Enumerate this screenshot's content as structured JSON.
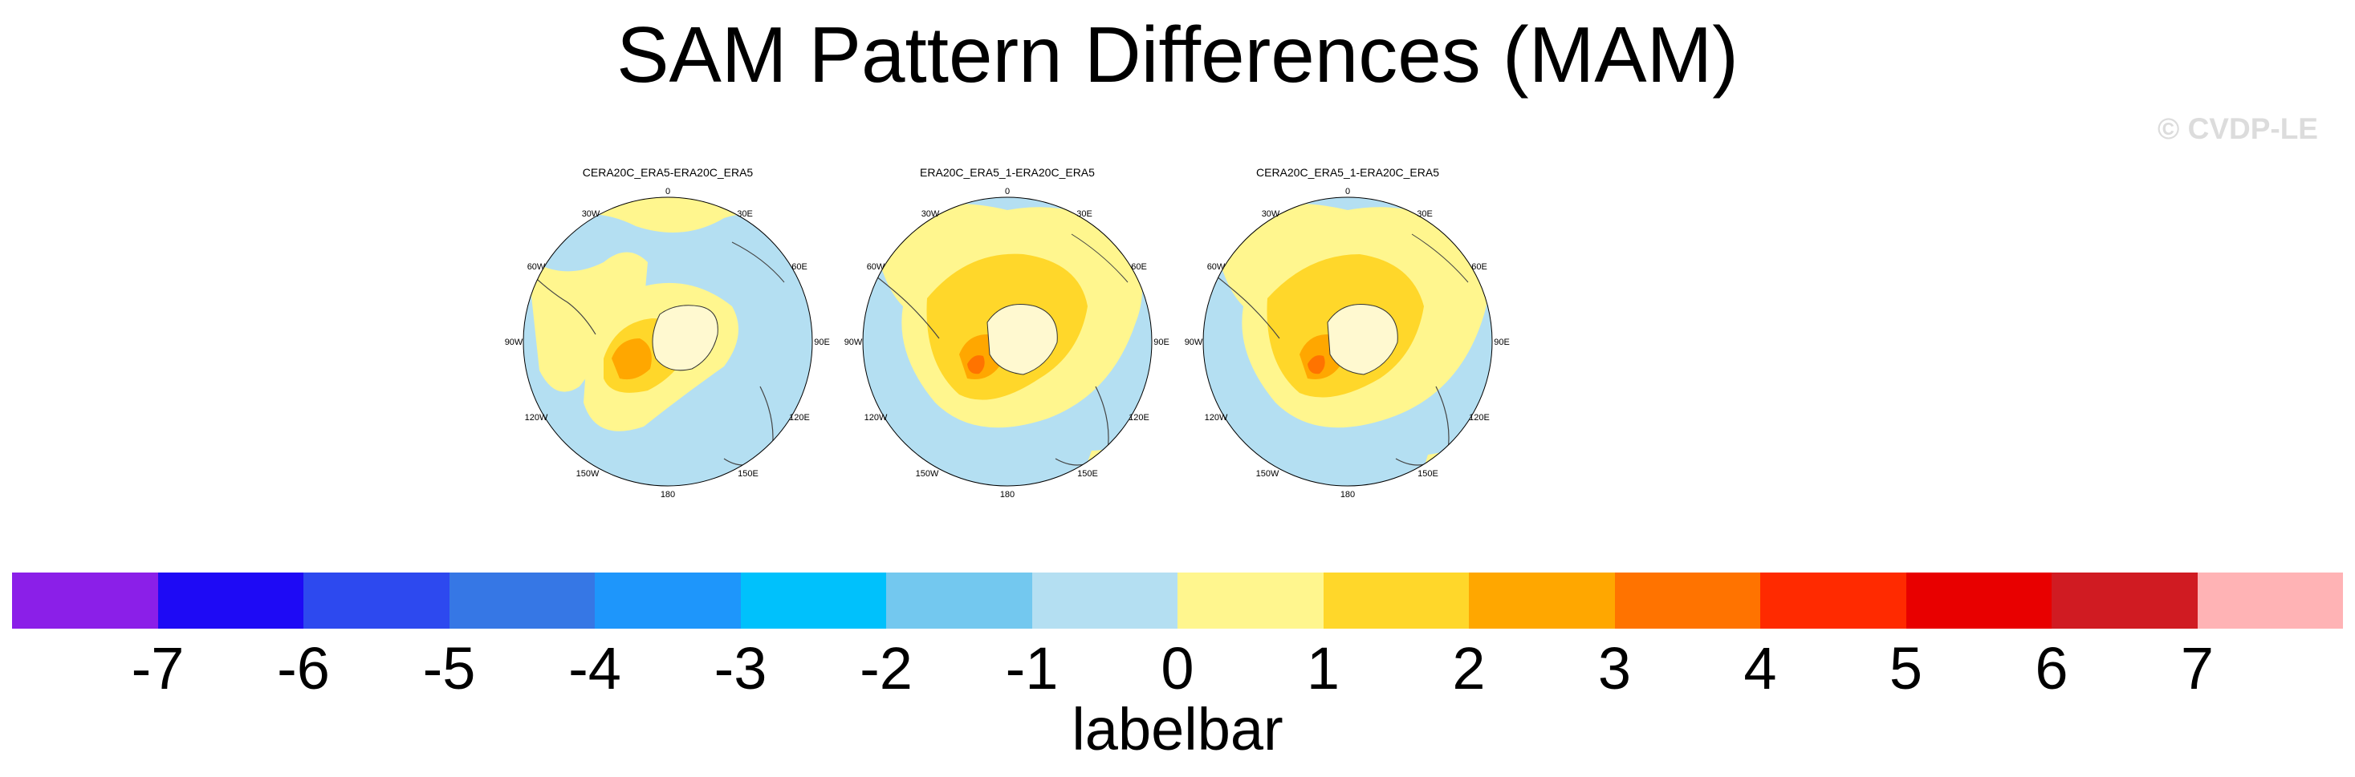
{
  "title": "SAM Pattern Differences (MAM)",
  "watermark": "© CVDP-LE",
  "panels": [
    {
      "title": "CERA20C_ERA5-ERA20C_ERA5"
    },
    {
      "title": "ERA20C_ERA5_1-ERA20C_ERA5"
    },
    {
      "title": "CERA20C_ERA5_1-ERA20C_ERA5"
    }
  ],
  "longitude_labels": [
    "0",
    "30E",
    "60E",
    "90E",
    "120E",
    "150E",
    "180",
    "150W",
    "120W",
    "90W",
    "60W",
    "30W"
  ],
  "labelbar": {
    "label": "labelbar",
    "ticks": [
      "-7",
      "-6",
      "-5",
      "-4",
      "-3",
      "-2",
      "-1",
      "0",
      "1",
      "2",
      "3",
      "4",
      "5",
      "6",
      "7"
    ],
    "colors": [
      "#8b1fe8",
      "#1e0af5",
      "#2d49ef",
      "#3677e5",
      "#1e96fb",
      "#00c1fc",
      "#73c8ef",
      "#b4dff2",
      "#fff68e",
      "#ffd72a",
      "#ffa700",
      "#ff7300",
      "#ff2a00",
      "#e80000",
      "#d01b22",
      "#ffb3b5"
    ]
  }
}
